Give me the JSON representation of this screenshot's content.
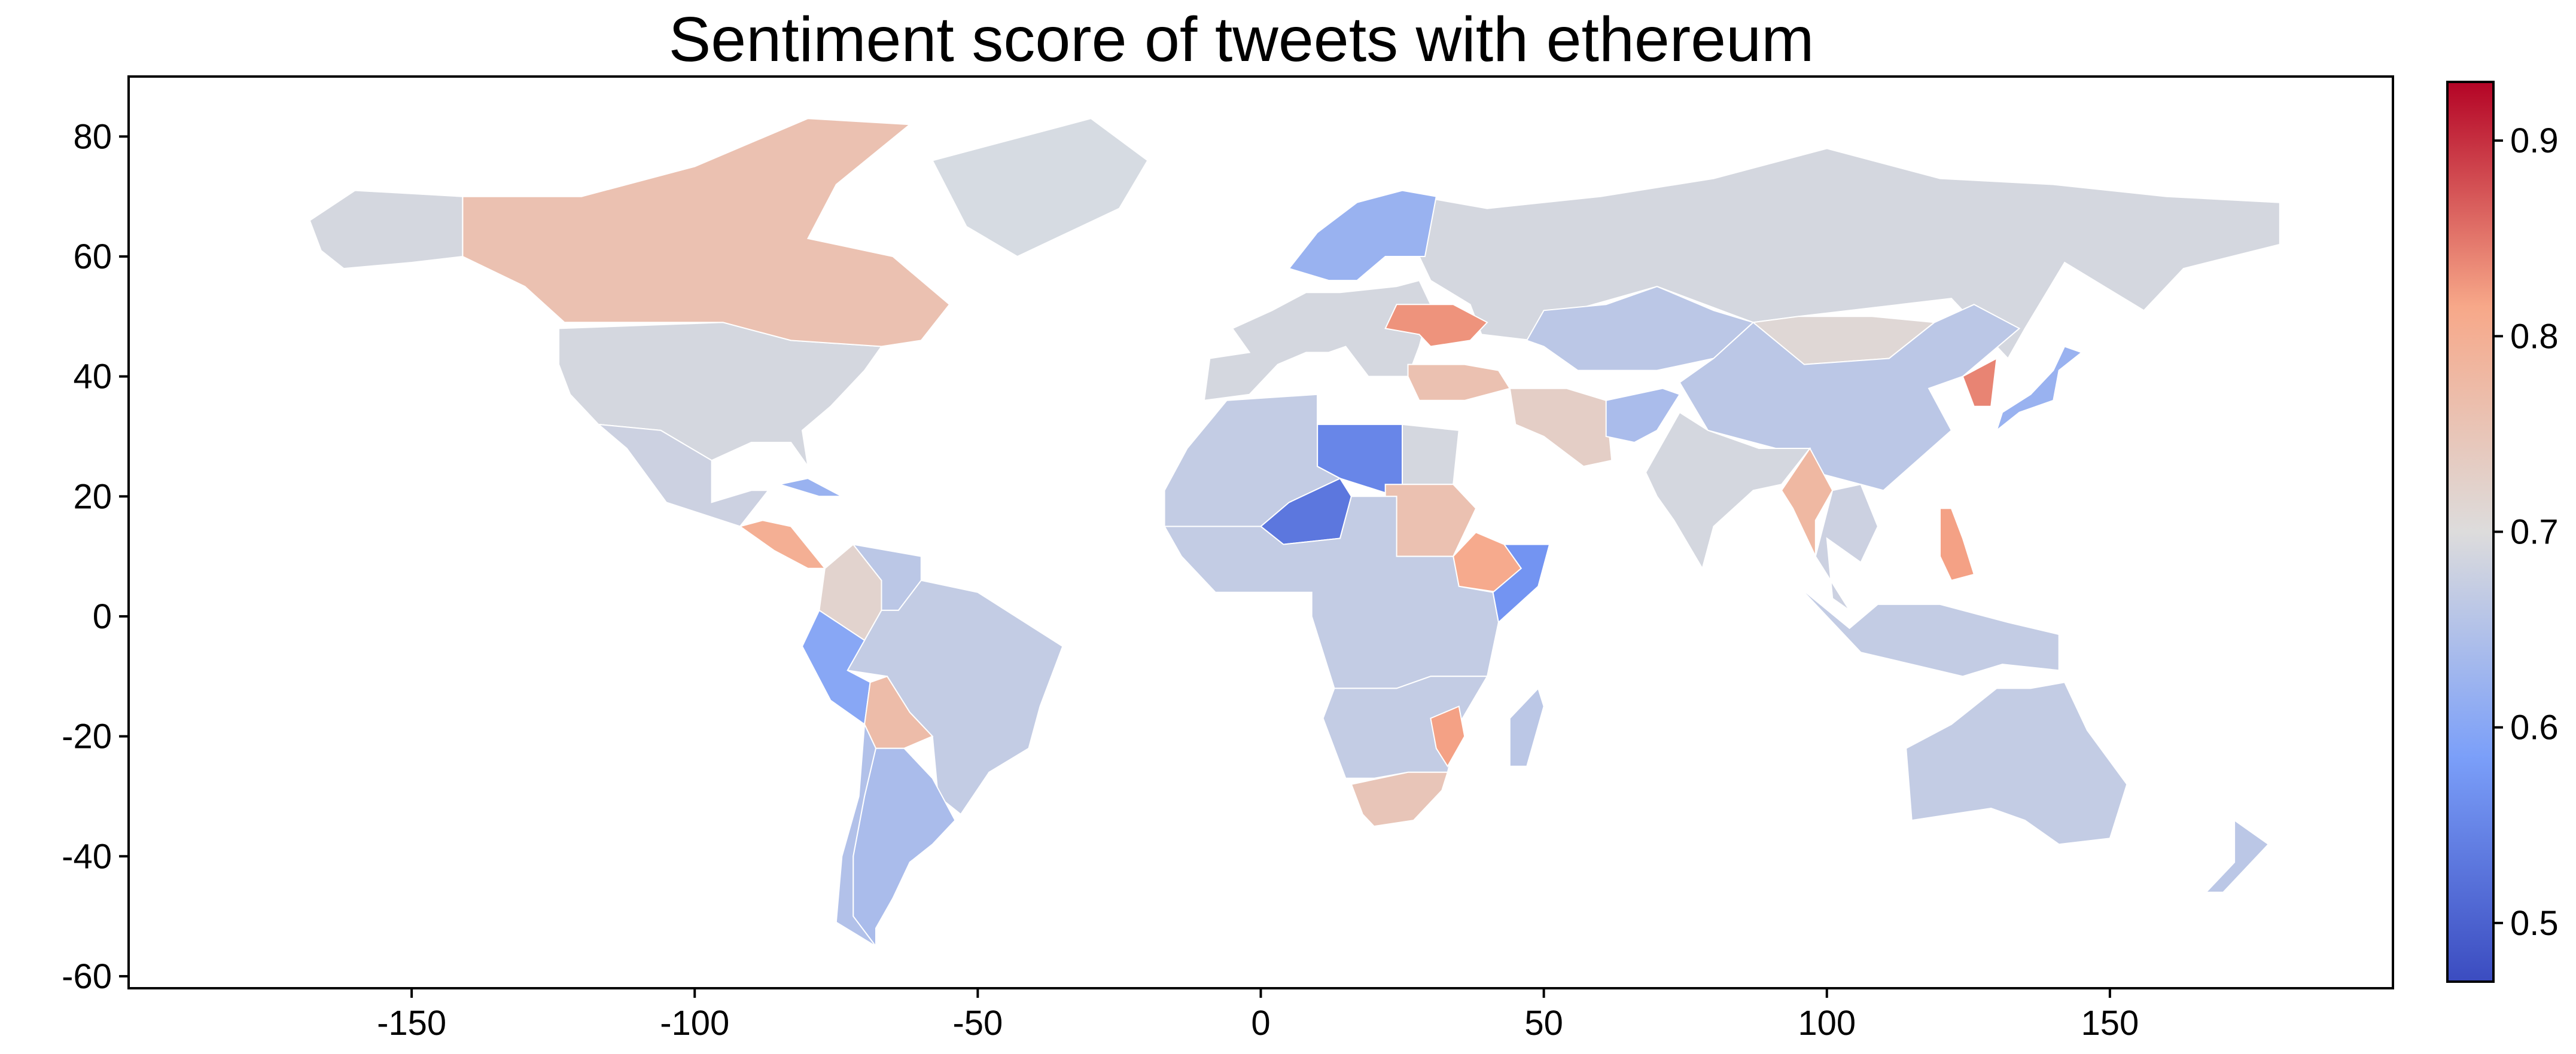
{
  "chart_data": {
    "type": "choropleth",
    "title": "Sentiment score of tweets with ethereum",
    "xlim": [
      -200,
      200
    ],
    "ylim": [
      -62,
      90
    ],
    "x_ticks": [
      -150,
      -100,
      -50,
      0,
      50,
      100,
      150
    ],
    "y_ticks": [
      80,
      60,
      40,
      20,
      0,
      -20,
      -40,
      -60
    ],
    "colorbar": {
      "colormap": "coolwarm",
      "range": [
        0.47,
        0.93
      ],
      "ticks": [
        0.5,
        0.6,
        0.7,
        0.8,
        0.9
      ],
      "placement": "right"
    },
    "regions": [
      {
        "name": "Russia",
        "value": 0.69
      },
      {
        "name": "USA",
        "value": 0.69
      },
      {
        "name": "Canada",
        "value": 0.76
      },
      {
        "name": "Greenland",
        "value": null
      },
      {
        "name": "Alaska",
        "value": 0.69
      },
      {
        "name": "Mexico",
        "value": 0.68
      },
      {
        "name": "Cuba",
        "value": 0.62
      },
      {
        "name": "Central America",
        "value": 0.8
      },
      {
        "name": "Colombia",
        "value": 0.72
      },
      {
        "name": "Venezuela",
        "value": 0.66
      },
      {
        "name": "Brazil",
        "value": 0.67
      },
      {
        "name": "Peru",
        "value": 0.6
      },
      {
        "name": "Bolivia",
        "value": 0.77
      },
      {
        "name": "Argentina",
        "value": 0.64
      },
      {
        "name": "Chile",
        "value": 0.65
      },
      {
        "name": "Europe West",
        "value": 0.69
      },
      {
        "name": "Scandinavia",
        "value": 0.62
      },
      {
        "name": "Ukraine",
        "value": 0.83
      },
      {
        "name": "Turkey",
        "value": 0.76
      },
      {
        "name": "Kazakhstan",
        "value": 0.66
      },
      {
        "name": "Mongolia",
        "value": 0.71
      },
      {
        "name": "China",
        "value": 0.66
      },
      {
        "name": "Iran",
        "value": 0.73
      },
      {
        "name": "Afghanistan",
        "value": 0.64
      },
      {
        "name": "India",
        "value": 0.69
      },
      {
        "name": "Korea",
        "value": 0.84
      },
      {
        "name": "Japan",
        "value": 0.62
      },
      {
        "name": "Myanmar",
        "value": 0.78
      },
      {
        "name": "Southeast Asia",
        "value": 0.68
      },
      {
        "name": "Philippines",
        "value": 0.82
      },
      {
        "name": "Indonesia",
        "value": 0.67
      },
      {
        "name": "Australia",
        "value": 0.67
      },
      {
        "name": "New Zealand",
        "value": 0.66
      },
      {
        "name": "Libya",
        "value": 0.55
      },
      {
        "name": "Niger",
        "value": 0.53
      },
      {
        "name": "North Africa",
        "value": 0.67
      },
      {
        "name": "Egypt",
        "value": 0.69
      },
      {
        "name": "Sudan",
        "value": 0.76
      },
      {
        "name": "Ethiopia",
        "value": 0.81
      },
      {
        "name": "Somalia",
        "value": 0.57
      },
      {
        "name": "Central Africa",
        "value": 0.67
      },
      {
        "name": "Southern Africa",
        "value": 0.67
      },
      {
        "name": "Mozambique",
        "value": 0.82
      },
      {
        "name": "South Africa",
        "value": 0.75
      },
      {
        "name": "Madagascar",
        "value": 0.66
      }
    ]
  }
}
